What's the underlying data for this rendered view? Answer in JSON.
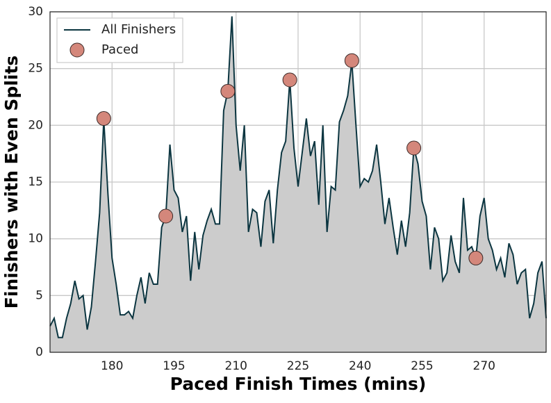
{
  "chart_data": {
    "type": "line",
    "xlabel": "Paced Finish Times (mins)",
    "ylabel": "Finishers with Even Splits",
    "xlim": [
      165,
      285
    ],
    "xticks": [
      180,
      195,
      210,
      225,
      240,
      255,
      270
    ],
    "ylim": [
      0,
      30
    ],
    "yticks": [
      0,
      5,
      10,
      15,
      20,
      25,
      30
    ],
    "grid": true,
    "legend": "upper-left",
    "series": [
      {
        "name": "All Finishers",
        "color": "#0b3540",
        "fill": "#cccccc",
        "x": [
          165,
          166,
          167,
          168,
          169,
          170,
          171,
          172,
          173,
          174,
          175,
          176,
          177,
          178,
          179,
          180,
          181,
          182,
          183,
          184,
          185,
          186,
          187,
          188,
          189,
          190,
          191,
          192,
          193,
          194,
          195,
          196,
          197,
          198,
          199,
          200,
          201,
          202,
          203,
          204,
          205,
          206,
          207,
          208,
          209,
          210,
          211,
          212,
          213,
          214,
          215,
          216,
          217,
          218,
          219,
          220,
          221,
          222,
          223,
          224,
          225,
          226,
          227,
          228,
          229,
          230,
          231,
          232,
          233,
          234,
          235,
          236,
          237,
          238,
          239,
          240,
          241,
          242,
          243,
          244,
          245,
          246,
          247,
          248,
          249,
          250,
          251,
          252,
          253,
          254,
          255,
          256,
          257,
          258,
          259,
          260,
          261,
          262,
          263,
          264,
          265,
          266,
          267,
          268,
          269,
          270,
          271,
          272,
          273,
          274,
          275,
          276,
          277,
          278,
          279,
          280,
          281,
          282,
          283,
          284,
          285
        ],
        "values": [
          2.3,
          3.0,
          1.3,
          1.3,
          3.0,
          4.3,
          6.3,
          4.7,
          5.0,
          2.0,
          4.0,
          8.0,
          12.3,
          20.5,
          14.0,
          8.3,
          6.0,
          3.3,
          3.3,
          3.6,
          3.0,
          5.0,
          6.6,
          4.3,
          7.0,
          6.0,
          6.0,
          11.0,
          12.0,
          18.3,
          14.3,
          13.6,
          10.6,
          12.0,
          6.3,
          10.6,
          7.3,
          10.3,
          11.6,
          12.6,
          11.3,
          11.3,
          21.3,
          23.0,
          29.6,
          20.0,
          16.0,
          20.0,
          10.6,
          12.6,
          12.3,
          9.3,
          13.3,
          14.3,
          9.6,
          14.3,
          17.6,
          18.6,
          24.0,
          18.0,
          14.6,
          17.6,
          20.6,
          17.3,
          18.6,
          13.0,
          20.0,
          10.6,
          14.6,
          14.3,
          20.3,
          21.3,
          22.6,
          25.6,
          20.0,
          14.6,
          15.3,
          15.0,
          16.0,
          18.3,
          15.0,
          11.3,
          13.6,
          11.0,
          8.6,
          11.6,
          9.3,
          12.3,
          18.0,
          16.6,
          13.3,
          12.0,
          7.3,
          11.0,
          10.0,
          6.3,
          7.0,
          10.3,
          8.0,
          7.0,
          13.6,
          9.0,
          9.3,
          8.3,
          12.0,
          13.6,
          10.0,
          9.0,
          7.3,
          8.3,
          6.6,
          9.6,
          8.6,
          6.0,
          7.0,
          7.3,
          3.0,
          4.3,
          7.0,
          8.0,
          3.0
        ]
      },
      {
        "name": "Paced",
        "type": "scatter",
        "color": "#d4877b",
        "x": [
          178,
          193,
          208,
          223,
          238,
          253,
          268
        ],
        "values": [
          20.6,
          12.0,
          23.0,
          24.0,
          25.7,
          18.0,
          8.3
        ]
      }
    ]
  }
}
